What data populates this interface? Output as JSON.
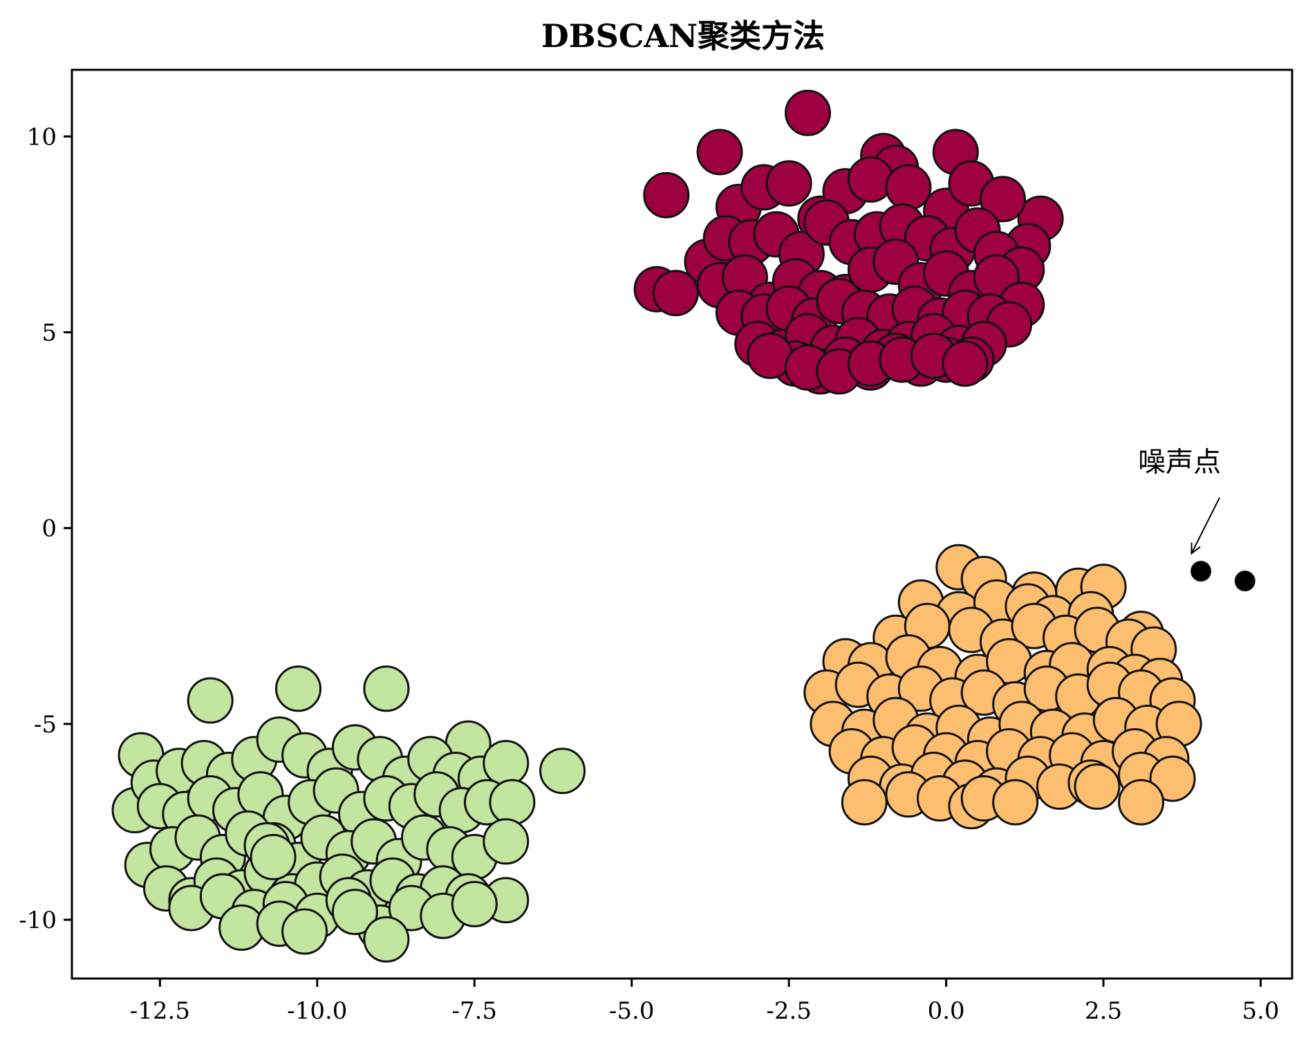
{
  "chart_data": {
    "type": "scatter",
    "title": "DBSCAN聚类方法",
    "xlabel": "",
    "ylabel": "",
    "xlim": [
      -13.9,
      5.5
    ],
    "ylim": [
      -11.5,
      11.7
    ],
    "xticks": [
      -12.5,
      -10.0,
      -7.5,
      -5.0,
      -2.5,
      0.0,
      2.5,
      5.0
    ],
    "xtick_labels": [
      "-12.5",
      "-10.0",
      "-7.5",
      "-5.0",
      "-2.5",
      "0.0",
      "2.5",
      "5.0"
    ],
    "yticks": [
      -10,
      -5,
      0,
      5,
      10
    ],
    "ytick_labels": [
      "-10",
      "-5",
      "0",
      "5",
      "10"
    ],
    "grid": false,
    "series": [
      {
        "color": "#9e0142",
        "x": [
          -4.45,
          -3.6,
          -2.2,
          -1.0,
          -0.8,
          0.15,
          1.5,
          -4.6,
          -4.3,
          -3.8,
          -3.3,
          -2.9,
          -2.5,
          -2.0,
          -1.6,
          -1.2,
          -0.6,
          0.0,
          0.4,
          0.9,
          1.3,
          -3.5,
          -3.1,
          -2.7,
          -2.3,
          -1.9,
          -1.5,
          -1.1,
          -0.7,
          -0.3,
          0.1,
          0.5,
          0.8,
          1.2,
          -3.6,
          -3.2,
          -2.8,
          -2.4,
          -2.0,
          -1.6,
          -1.2,
          -0.8,
          -0.4,
          0.0,
          0.4,
          0.8,
          1.2,
          -3.3,
          -2.9,
          -2.5,
          -2.1,
          -1.7,
          -1.3,
          -0.9,
          -0.5,
          -0.1,
          0.3,
          0.7,
          1.0,
          -3.0,
          -2.6,
          -2.2,
          -1.8,
          -1.4,
          -1.0,
          -0.6,
          -0.2,
          0.2,
          0.6,
          -2.4,
          -2.0,
          -1.6,
          -1.2,
          -0.8,
          -0.4,
          0.0,
          0.4,
          -2.8,
          -2.2,
          -1.7,
          -1.2,
          -0.7,
          -0.2,
          0.3
        ],
        "y": [
          8.5,
          9.6,
          10.6,
          9.5,
          9.2,
          9.6,
          7.9,
          6.1,
          6.0,
          6.8,
          8.2,
          8.7,
          8.8,
          7.9,
          8.6,
          8.9,
          8.7,
          8.1,
          8.8,
          8.4,
          7.2,
          7.4,
          7.3,
          7.5,
          7.0,
          7.8,
          7.3,
          7.5,
          7.7,
          7.4,
          7.1,
          7.6,
          7.0,
          6.6,
          6.2,
          6.4,
          5.7,
          6.3,
          6.0,
          5.9,
          6.6,
          6.8,
          6.2,
          6.5,
          6.0,
          6.4,
          5.7,
          5.5,
          5.4,
          5.6,
          5.3,
          5.8,
          5.5,
          5.4,
          5.6,
          5.3,
          5.5,
          5.4,
          5.2,
          4.7,
          4.5,
          4.9,
          4.6,
          4.8,
          4.5,
          4.7,
          4.9,
          4.6,
          4.7,
          4.2,
          4.0,
          4.3,
          4.1,
          4.4,
          4.2,
          4.3,
          4.3,
          4.4,
          4.1,
          4.0,
          4.2,
          4.3,
          4.4,
          4.2
        ]
      },
      {
        "color": "#fdbf6f",
        "x": [
          0.2,
          0.6,
          1.4,
          2.1,
          2.5,
          -0.4,
          0.2,
          0.8,
          1.3,
          1.7,
          2.3,
          3.1,
          -0.8,
          -0.3,
          0.4,
          0.9,
          1.4,
          1.9,
          2.4,
          2.9,
          3.3,
          -1.6,
          -1.2,
          -0.6,
          -0.1,
          0.5,
          1.0,
          1.6,
          2.0,
          2.6,
          3.0,
          3.4,
          -1.9,
          -1.4,
          -0.9,
          -0.4,
          0.1,
          0.6,
          1.1,
          1.6,
          2.1,
          2.6,
          3.1,
          3.6,
          -1.8,
          -1.3,
          -0.8,
          -0.3,
          0.2,
          0.7,
          1.2,
          1.7,
          2.2,
          2.7,
          3.2,
          3.7,
          -1.5,
          -1.0,
          -0.5,
          0.0,
          0.5,
          1.0,
          1.5,
          2.0,
          2.5,
          3.0,
          3.5,
          -1.2,
          -0.7,
          -0.2,
          0.3,
          0.8,
          1.3,
          1.8,
          2.3,
          3.1,
          3.6,
          -1.3,
          -0.6,
          -0.1,
          0.4,
          0.6,
          1.1,
          2.4,
          3.1
        ],
        "y": [
          -1.0,
          -1.3,
          -1.7,
          -1.6,
          -1.5,
          -1.9,
          -2.2,
          -1.9,
          -2.0,
          -2.3,
          -2.2,
          -2.7,
          -2.8,
          -2.5,
          -2.6,
          -2.9,
          -2.5,
          -2.8,
          -2.6,
          -2.9,
          -3.1,
          -3.4,
          -3.5,
          -3.3,
          -3.6,
          -3.8,
          -3.4,
          -3.7,
          -3.5,
          -3.6,
          -3.8,
          -3.9,
          -4.2,
          -4.0,
          -4.3,
          -4.1,
          -4.4,
          -4.2,
          -4.5,
          -4.1,
          -4.3,
          -4.0,
          -4.2,
          -4.4,
          -5.0,
          -5.2,
          -4.9,
          -5.3,
          -5.1,
          -5.4,
          -5.0,
          -5.2,
          -5.3,
          -4.9,
          -5.1,
          -5.0,
          -5.7,
          -5.9,
          -5.6,
          -5.8,
          -6.0,
          -5.7,
          -5.9,
          -5.8,
          -6.0,
          -5.7,
          -5.9,
          -6.4,
          -6.6,
          -6.3,
          -6.5,
          -6.7,
          -6.4,
          -6.6,
          -6.5,
          -6.3,
          -6.4,
          -7.0,
          -6.8,
          -6.9,
          -7.1,
          -6.9,
          -7.0,
          -6.6,
          -7.0
        ]
      },
      {
        "color": "#c2e5a0",
        "x": [
          -12.8,
          -11.7,
          -10.3,
          -8.9,
          -7.6,
          -6.1,
          -12.9,
          -12.6,
          -12.2,
          -11.8,
          -11.4,
          -11.0,
          -10.6,
          -10.2,
          -9.8,
          -9.4,
          -9.0,
          -8.6,
          -8.2,
          -7.8,
          -7.4,
          -7.0,
          -12.5,
          -12.1,
          -11.7,
          -11.3,
          -10.9,
          -10.5,
          -10.1,
          -9.7,
          -9.3,
          -8.9,
          -8.5,
          -8.1,
          -7.7,
          -7.3,
          -6.9,
          -12.7,
          -12.3,
          -11.9,
          -11.5,
          -11.1,
          -10.7,
          -10.3,
          -9.9,
          -9.5,
          -9.1,
          -8.7,
          -8.3,
          -7.9,
          -7.5,
          -7.0,
          -12.4,
          -12.0,
          -11.6,
          -11.2,
          -10.8,
          -10.4,
          -10.0,
          -9.6,
          -9.2,
          -8.8,
          -8.4,
          -8.0,
          -7.6,
          -7.0,
          -12.0,
          -11.5,
          -11.0,
          -10.5,
          -10.0,
          -9.5,
          -9.0,
          -8.5,
          -8.0,
          -7.5,
          -11.2,
          -10.6,
          -10.2,
          -9.4,
          -8.9,
          -10.8,
          -10.7
        ],
        "y": [
          -5.8,
          -4.4,
          -4.1,
          -4.1,
          -5.5,
          -6.2,
          -7.2,
          -6.5,
          -6.2,
          -6.0,
          -6.3,
          -5.9,
          -5.4,
          -5.8,
          -6.2,
          -5.6,
          -5.9,
          -6.4,
          -5.9,
          -6.3,
          -6.4,
          -6.0,
          -7.1,
          -7.3,
          -6.9,
          -7.2,
          -6.8,
          -7.4,
          -7.0,
          -6.7,
          -7.3,
          -6.9,
          -7.1,
          -6.8,
          -7.2,
          -7.0,
          -7.0,
          -8.6,
          -8.2,
          -7.9,
          -8.4,
          -7.8,
          -8.1,
          -8.6,
          -7.9,
          -8.3,
          -8.0,
          -8.5,
          -7.9,
          -8.2,
          -8.4,
          -8.0,
          -9.2,
          -9.5,
          -9.0,
          -9.3,
          -8.8,
          -9.4,
          -9.1,
          -8.9,
          -9.3,
          -9.0,
          -9.4,
          -9.2,
          -9.4,
          -9.5,
          -9.7,
          -9.4,
          -9.8,
          -9.6,
          -9.9,
          -9.5,
          -10.2,
          -9.7,
          -9.9,
          -9.6,
          -10.2,
          -10.1,
          -10.3,
          -9.8,
          -10.5,
          -8.1,
          -8.4
        ]
      },
      {
        "color": "#000000",
        "x": [
          4.05,
          4.75
        ],
        "y": [
          -1.1,
          -1.35
        ]
      }
    ],
    "annotation": {
      "text": "噪声点",
      "target": [
        3.9,
        -0.65
      ],
      "text_position": [
        3.05,
        1.45
      ]
    }
  }
}
